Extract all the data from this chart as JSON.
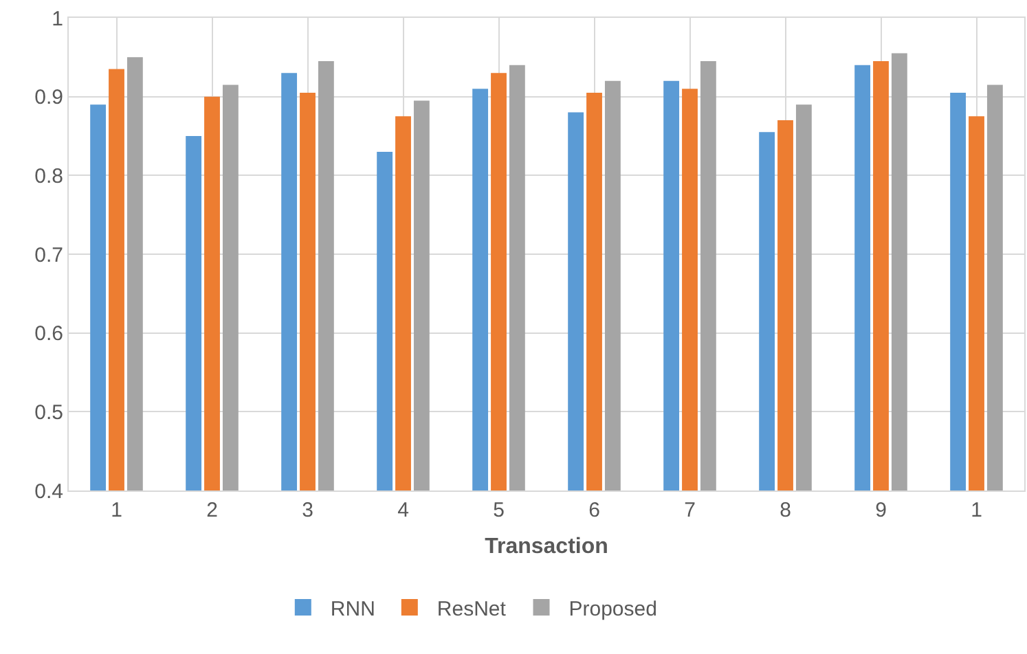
{
  "chart_data": {
    "type": "bar",
    "xlabel": "Transaction",
    "categories": [
      "1",
      "2",
      "3",
      "4",
      "5",
      "6",
      "7",
      "8",
      "9",
      "1"
    ],
    "series": [
      {
        "name": "RNN",
        "color": "#5b9bd5",
        "values": [
          0.89,
          0.85,
          0.93,
          0.83,
          0.91,
          0.88,
          0.92,
          0.855,
          0.94,
          0.905
        ]
      },
      {
        "name": "ResNet",
        "color": "#ed7d31",
        "values": [
          0.935,
          0.9,
          0.905,
          0.875,
          0.93,
          0.905,
          0.91,
          0.87,
          0.945,
          0.875
        ]
      },
      {
        "name": "Proposed",
        "color": "#a5a5a5",
        "values": [
          0.95,
          0.915,
          0.945,
          0.895,
          0.94,
          0.92,
          0.945,
          0.89,
          0.955,
          0.915
        ]
      }
    ],
    "ylim": [
      0.4,
      1
    ],
    "yticks": [
      0.4,
      0.5,
      0.6,
      0.7,
      0.8,
      0.9,
      1
    ],
    "grid": true,
    "legend": "bottom"
  }
}
